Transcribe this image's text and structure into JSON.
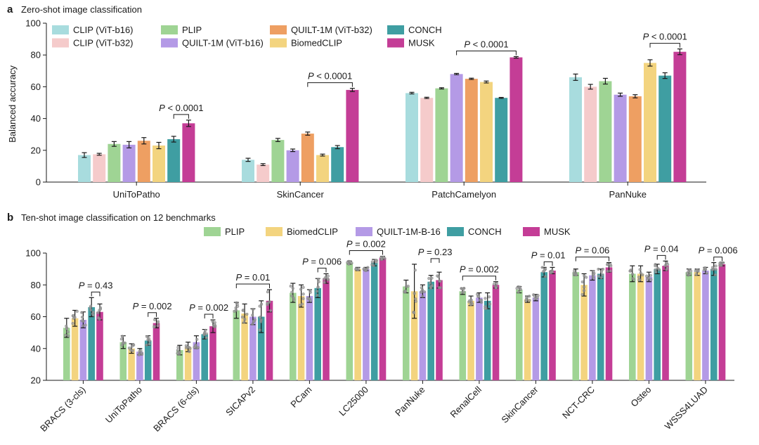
{
  "colors": {
    "CLIP (ViT-b16)": "#a8dcde",
    "CLIP (ViT-b32)": "#f5cbcb",
    "PLIP": "#9fd494",
    "QUILT-1M (ViT-b16)": "#b49ae6",
    "QUILT-1M (ViT-b32)": "#ee9f62",
    "BiomedCLIP": "#f3d47f",
    "CONCH": "#3f9ea2",
    "MUSK": "#c43d96",
    "QUILT-1M-B-16": "#b49ae6"
  },
  "chart_data": [
    {
      "panel": "a",
      "title": "Zero-shot image classification",
      "type": "bar",
      "ylabel": "Balanced accuracy",
      "xlabel": "",
      "ylim": [
        0,
        100
      ],
      "yticks": [
        0,
        20,
        40,
        60,
        80,
        100
      ],
      "grid": false,
      "legend_placement": "top-left",
      "categories": [
        "UniToPatho",
        "SkinCancer",
        "PatchCamelyon",
        "PanNuke"
      ],
      "series": [
        {
          "name": "CLIP (ViT-b16)",
          "values": [
            17,
            14,
            56,
            66
          ],
          "errors": [
            1.5,
            1.0,
            0.5,
            2.0
          ]
        },
        {
          "name": "CLIP (ViT-b32)",
          "values": [
            17.5,
            11,
            53,
            60
          ],
          "errors": [
            0.6,
            0.6,
            0.4,
            1.5
          ]
        },
        {
          "name": "PLIP",
          "values": [
            24,
            26.5,
            59,
            63.5
          ],
          "errors": [
            1.5,
            1.0,
            0.4,
            1.8
          ]
        },
        {
          "name": "QUILT-1M (ViT-b16)",
          "values": [
            23.5,
            20,
            68,
            55
          ],
          "errors": [
            2.0,
            0.8,
            0.4,
            1.0
          ]
        },
        {
          "name": "QUILT-1M (ViT-b32)",
          "values": [
            26,
            30.5,
            65,
            54
          ],
          "errors": [
            2.0,
            1.0,
            0.4,
            1.0
          ]
        },
        {
          "name": "BiomedCLIP",
          "values": [
            23,
            17,
            63,
            75
          ],
          "errors": [
            2.0,
            0.6,
            0.6,
            2.0
          ]
        },
        {
          "name": "CONCH",
          "values": [
            27,
            22,
            53,
            67
          ],
          "errors": [
            1.8,
            1.0,
            0.3,
            1.8
          ]
        },
        {
          "name": "MUSK",
          "values": [
            37,
            58,
            78.5,
            82
          ],
          "errors": [
            2.0,
            1.0,
            0.5,
            1.8
          ]
        }
      ],
      "annotations": [
        {
          "category": "UniToPatho",
          "text": "P < 0.0001"
        },
        {
          "category": "SkinCancer",
          "text": "P < 0.0001"
        },
        {
          "category": "PatchCamelyon",
          "text": "P < 0.0001"
        },
        {
          "category": "PanNuke",
          "text": "P < 0.0001"
        }
      ]
    },
    {
      "panel": "b",
      "title": "Ten-shot image classification on 12 benchmarks",
      "type": "bar",
      "ylabel": "",
      "xlabel": "",
      "ylim": [
        20,
        100
      ],
      "yticks": [
        20,
        40,
        60,
        80,
        100
      ],
      "grid": false,
      "legend_placement": "top-center",
      "categories": [
        "BRACS (3-cls)",
        "UniToPatho",
        "BRACS (6-cls)",
        "SICAPv2",
        "PCam",
        "LC25000",
        "PanNuke",
        "RenalCell",
        "SkinCancer",
        "NCT-CRC",
        "Osteo",
        "WSSS4LUAD"
      ],
      "series": [
        {
          "name": "PLIP",
          "values": [
            53,
            44,
            39,
            64,
            75,
            94,
            79,
            76,
            77,
            88,
            87,
            88
          ],
          "errors": [
            6,
            4,
            3,
            5,
            6,
            1,
            4,
            2,
            2,
            2,
            5,
            2
          ]
        },
        {
          "name": "BiomedCLIP",
          "values": [
            59,
            40,
            41,
            62,
            73,
            90,
            76,
            70,
            71,
            80,
            87,
            88
          ],
          "errors": [
            5,
            3,
            3,
            6,
            7,
            1,
            17,
            3,
            2,
            7,
            5,
            2
          ]
        },
        {
          "name": "QUILT-1M-B-16",
          "values": [
            58,
            38,
            44,
            60,
            73,
            90,
            76,
            72,
            72,
            86,
            85,
            89
          ],
          "errors": [
            5,
            2,
            4,
            5,
            4,
            1,
            4,
            3,
            2,
            3,
            3,
            2
          ]
        },
        {
          "name": "CONCH",
          "values": [
            66,
            45,
            49,
            60,
            78,
            94,
            82,
            70,
            88,
            87,
            90,
            90
          ],
          "errors": [
            6,
            3,
            3,
            10,
            6,
            2,
            4,
            5,
            3,
            3,
            3,
            4
          ]
        },
        {
          "name": "MUSK",
          "values": [
            63,
            56,
            54,
            70,
            84,
            97,
            83,
            80,
            89,
            91,
            92,
            93
          ],
          "errors": [
            5,
            3,
            4,
            7,
            3,
            1,
            5,
            2,
            2,
            3,
            3,
            1
          ]
        }
      ],
      "annotations": [
        {
          "category": "BRACS (3-cls)",
          "text": "P = 0.43"
        },
        {
          "category": "UniToPatho",
          "text": "P = 0.002"
        },
        {
          "category": "BRACS (6-cls)",
          "text": "P = 0.002"
        },
        {
          "category": "SICAPv2",
          "text": "P = 0.01"
        },
        {
          "category": "PCam",
          "text": "P = 0.006"
        },
        {
          "category": "LC25000",
          "text": "P = 0.002"
        },
        {
          "category": "PanNuke",
          "text": "P = 0.23"
        },
        {
          "category": "RenalCell",
          "text": "P = 0.002"
        },
        {
          "category": "SkinCancer",
          "text": "P = 0.01"
        },
        {
          "category": "NCT-CRC",
          "text": "P = 0.06"
        },
        {
          "category": "Osteo",
          "text": "P = 0.04"
        },
        {
          "category": "WSSS4LUAD",
          "text": "P = 0.006"
        }
      ]
    }
  ]
}
